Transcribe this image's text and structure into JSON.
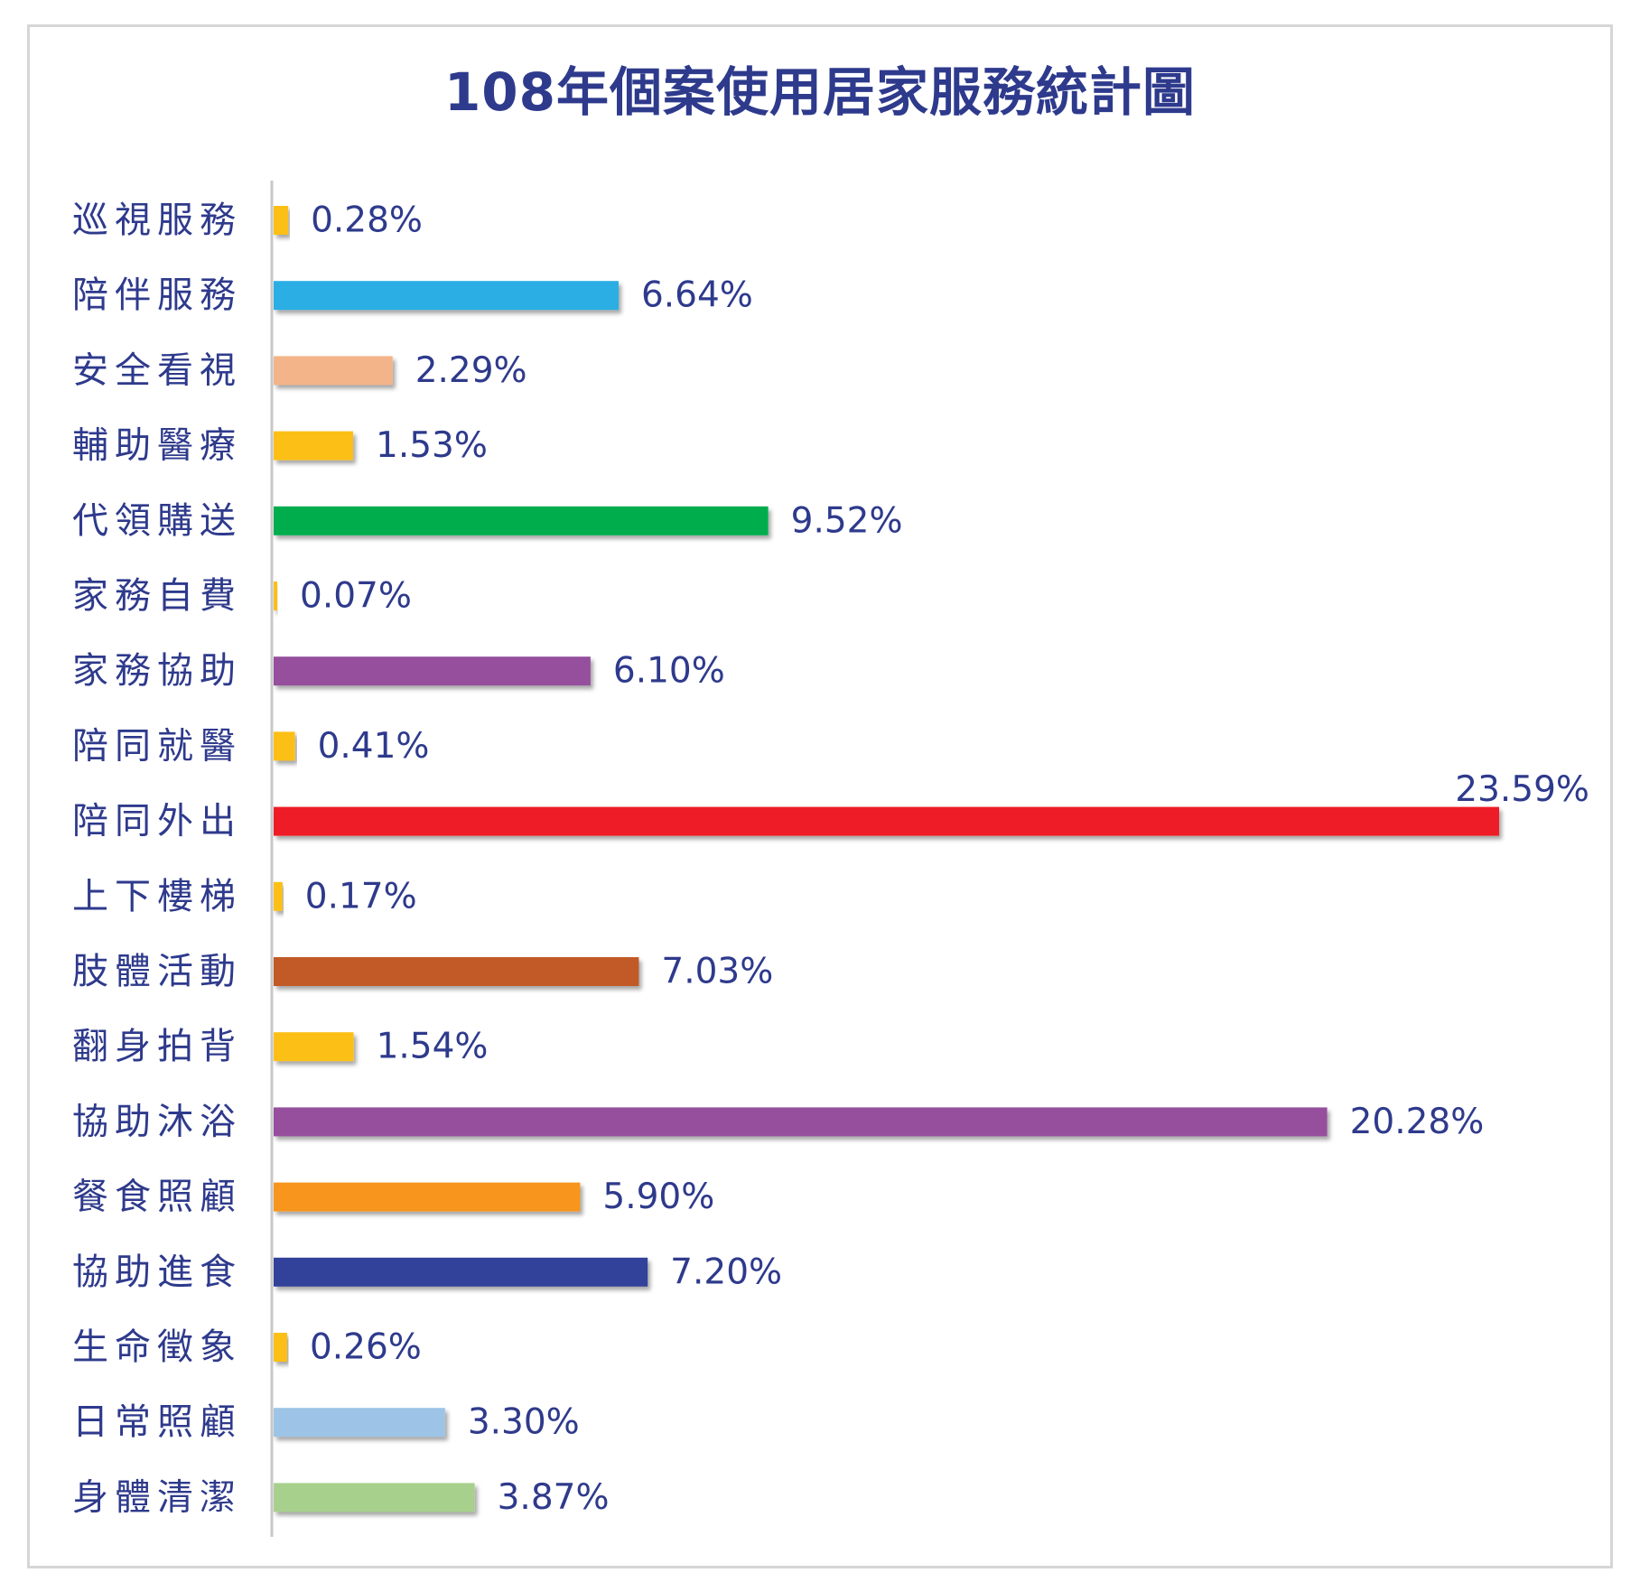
{
  "chart_data": {
    "type": "bar",
    "orientation": "horizontal",
    "title": "108年個案使用居家服務統計圖",
    "xlabel": "",
    "ylabel": "",
    "xlim": [
      0,
      23.59
    ],
    "grid": false,
    "legend": "none",
    "categories": [
      "巡視服務",
      "陪伴服務",
      "安全看視",
      "輔助醫療",
      "代領購送",
      "家務自費",
      "家務協助",
      "陪同就醫",
      "陪同外出",
      "上下樓梯",
      "肢體活動",
      "翻身拍背",
      "協助沐浴",
      "餐食照顧",
      "協助進食",
      "生命徵象",
      "日常照顧",
      "身體清潔"
    ],
    "values": [
      0.28,
      6.64,
      2.29,
      1.53,
      9.52,
      0.07,
      6.1,
      0.41,
      23.59,
      0.17,
      7.03,
      1.54,
      20.28,
      5.9,
      7.2,
      0.26,
      3.3,
      3.87
    ],
    "data_labels": [
      "0.28%",
      "6.64%",
      "2.29%",
      "1.53%",
      "9.52%",
      "0.07%",
      "6.10%",
      "0.41%",
      "23.59%",
      "0.17%",
      "7.03%",
      "1.54%",
      "20.28%",
      "5.90%",
      "7.20%",
      "0.26%",
      "3.30%",
      "3.87%"
    ],
    "colors": [
      "#fcbf16",
      "#2aaee4",
      "#f2b488",
      "#fcbf16",
      "#06ad4d",
      "#fcbf16",
      "#954f9d",
      "#fcbf16",
      "#ee1f26",
      "#fcbf16",
      "#c15a26",
      "#fcbf16",
      "#954f9d",
      "#f7951f",
      "#33439a",
      "#fcbf16",
      "#9dc4e6",
      "#a8d08d"
    ]
  },
  "colors": {
    "title": "#2e3a8c",
    "labels": "#2e3a8c",
    "axis": "#c8c8c8",
    "border": "#d6d6d6"
  }
}
